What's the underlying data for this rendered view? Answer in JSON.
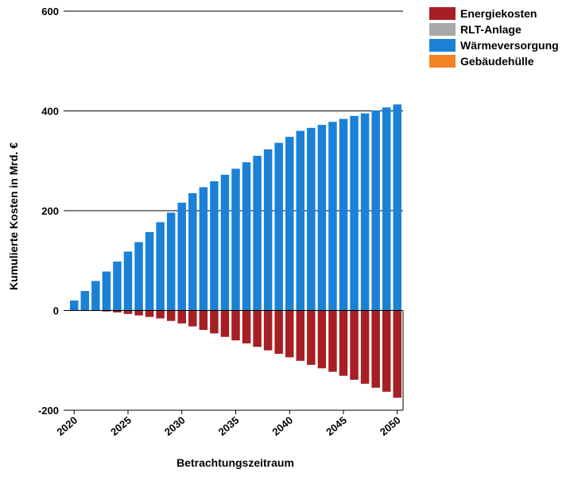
{
  "chart_data": {
    "type": "bar",
    "stacked": true,
    "xlabel": "Betrachtungszeitraum",
    "ylabel": "Kumulierte Kosten in Mrd. €",
    "ylim": [
      -200,
      600
    ],
    "yticks": [
      -200,
      0,
      200,
      400,
      600
    ],
    "grid": true,
    "legend_position": "top-right",
    "x": [
      2020,
      2021,
      2022,
      2023,
      2024,
      2025,
      2026,
      2027,
      2028,
      2029,
      2030,
      2031,
      2032,
      2033,
      2034,
      2035,
      2036,
      2037,
      2038,
      2039,
      2040,
      2041,
      2042,
      2043,
      2044,
      2045,
      2046,
      2047,
      2048,
      2049,
      2050
    ],
    "xticks": [
      2020,
      2025,
      2030,
      2035,
      2040,
      2045,
      2050
    ],
    "series": [
      {
        "name": "Energiekosten",
        "color": "#a51f24",
        "values": [
          0,
          -1,
          -1,
          -2,
          -4,
          -7,
          -10,
          -13,
          -16,
          -21,
          -26,
          -32,
          -39,
          -46,
          -53,
          -60,
          -66,
          -73,
          -80,
          -87,
          -94,
          -101,
          -109,
          -116,
          -123,
          -131,
          -139,
          -147,
          -155,
          -163,
          -175
        ]
      },
      {
        "name": "RLT-Anlage",
        "color": "#a7aaa9",
        "values": [
          0,
          0,
          0,
          0,
          0,
          0,
          0,
          0,
          0,
          0,
          0,
          0,
          0,
          0,
          0,
          0,
          0,
          0,
          0,
          0,
          0,
          0,
          0,
          0,
          0,
          0,
          0,
          0,
          0,
          0,
          0
        ]
      },
      {
        "name": "Wärmeversorgung",
        "color": "#1a81d6",
        "values": [
          20,
          39,
          59,
          78,
          98,
          118,
          137,
          157,
          177,
          196,
          216,
          235,
          247,
          259,
          272,
          284,
          297,
          310,
          323,
          336,
          348,
          360,
          366,
          372,
          378,
          384,
          390,
          395,
          401,
          407,
          413
        ]
      },
      {
        "name": "Gebäudehülle",
        "color": "#f28322",
        "values": [
          0,
          0,
          0,
          0,
          0,
          0,
          0,
          0,
          0,
          0,
          0,
          0,
          0,
          0,
          0,
          0,
          0,
          0,
          0,
          0,
          0,
          0,
          0,
          0,
          0,
          0,
          0,
          0,
          0,
          0,
          0
        ]
      }
    ]
  }
}
